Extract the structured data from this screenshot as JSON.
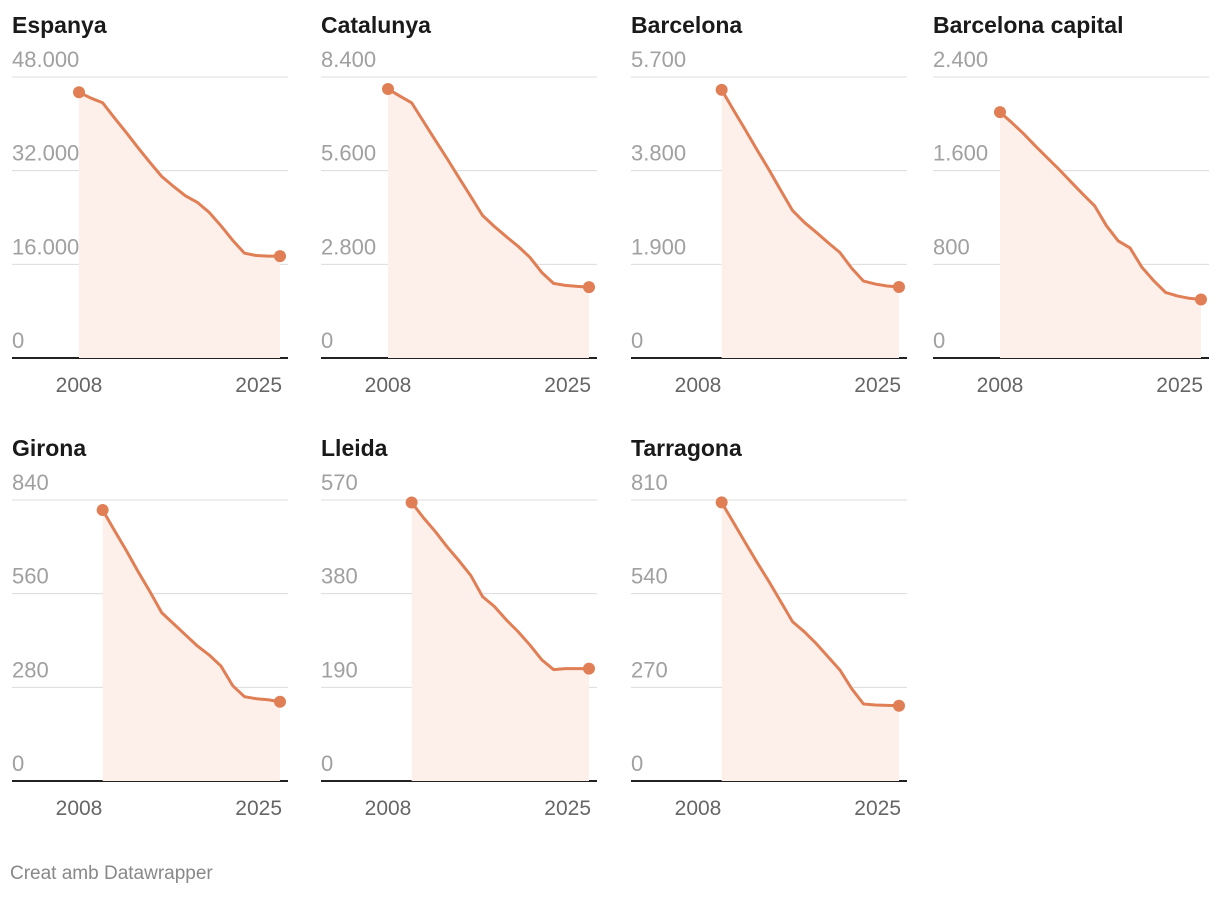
{
  "chart_data": [
    {
      "type": "area",
      "title": "Espanya",
      "color": "#e07f55",
      "fill": "#fdf0eb",
      "x": [
        2008,
        2009,
        2010,
        2011,
        2012,
        2013,
        2014,
        2015,
        2016,
        2017,
        2018,
        2019,
        2020,
        2021,
        2022,
        2023,
        2024,
        2025
      ],
      "values": [
        45400,
        44400,
        43600,
        41000,
        38500,
        35900,
        33400,
        31000,
        29300,
        27700,
        26600,
        24900,
        22600,
        20100,
        17900,
        17500,
        17400,
        17400
      ],
      "xlim": [
        2008,
        2025
      ],
      "xticks": [
        2008,
        2025
      ],
      "ylim": [
        0,
        48000
      ],
      "yticks": [
        0,
        {
          "value": 16000,
          "label": "16.000"
        },
        {
          "value": 32000,
          "label": "32.000"
        },
        {
          "value": 48000,
          "label": "48.000"
        }
      ]
    },
    {
      "type": "area",
      "title": "Catalunya",
      "color": "#e07f55",
      "fill": "#fdf0eb",
      "x": [
        2008,
        2009,
        2010,
        2011,
        2012,
        2013,
        2014,
        2015,
        2016,
        2017,
        2018,
        2019,
        2020,
        2021,
        2022,
        2023,
        2024,
        2025
      ],
      "values": [
        8040,
        7830,
        7630,
        7070,
        6510,
        5960,
        5390,
        4830,
        4260,
        3930,
        3630,
        3340,
        3010,
        2560,
        2230,
        2170,
        2140,
        2120
      ],
      "xlim": [
        2008,
        2025
      ],
      "xticks": [
        2008,
        2025
      ],
      "ylim": [
        0,
        8400
      ],
      "yticks": [
        0,
        {
          "value": 2800,
          "label": "2.800"
        },
        {
          "value": 5600,
          "label": "5.600"
        },
        {
          "value": 8400,
          "label": "8.400"
        }
      ]
    },
    {
      "type": "area",
      "title": "Barcelona",
      "color": "#e07f55",
      "fill": "#fdf0eb",
      "x": [
        2010,
        2011,
        2012,
        2013,
        2014,
        2015,
        2016,
        2017,
        2018,
        2019,
        2020,
        2021,
        2022,
        2023,
        2024,
        2025
      ],
      "values": [
        5440,
        5030,
        4630,
        4220,
        3820,
        3400,
        2990,
        2750,
        2550,
        2340,
        2140,
        1820,
        1560,
        1500,
        1460,
        1440
      ],
      "xlim": [
        2008,
        2025
      ],
      "xticks": [
        2008,
        2025
      ],
      "ylim": [
        0,
        5700
      ],
      "yticks": [
        0,
        {
          "value": 1900,
          "label": "1.900"
        },
        {
          "value": 3800,
          "label": "3.800"
        },
        {
          "value": 5700,
          "label": "5.700"
        }
      ]
    },
    {
      "type": "area",
      "title": "Barcelona capital",
      "color": "#e07f55",
      "fill": "#fdf0eb",
      "x": [
        2008,
        2009,
        2010,
        2011,
        2012,
        2013,
        2014,
        2015,
        2016,
        2017,
        2018,
        2019,
        2020,
        2021,
        2022,
        2023,
        2024,
        2025
      ],
      "values": [
        2100,
        2010,
        1915,
        1810,
        1710,
        1610,
        1505,
        1400,
        1300,
        1130,
        1000,
        940,
        775,
        660,
        560,
        530,
        510,
        500
      ],
      "xlim": [
        2008,
        2025
      ],
      "xticks": [
        2008,
        2025
      ],
      "ylim": [
        0,
        2400
      ],
      "yticks": [
        0,
        800,
        {
          "value": 1600,
          "label": "1.600"
        },
        {
          "value": 2400,
          "label": "2.400"
        }
      ]
    },
    {
      "type": "area",
      "title": "Girona",
      "color": "#e07f55",
      "fill": "#fdf0eb",
      "x": [
        2010,
        2011,
        2012,
        2013,
        2014,
        2015,
        2016,
        2017,
        2018,
        2019,
        2020,
        2021,
        2022,
        2023,
        2024,
        2025
      ],
      "values": [
        810,
        749,
        689,
        626,
        566,
        503,
        470,
        437,
        404,
        377,
        344,
        285,
        252,
        246,
        243,
        237
      ],
      "xlim": [
        2008,
        2025
      ],
      "xticks": [
        2008,
        2025
      ],
      "ylim": [
        0,
        840
      ],
      "yticks": [
        0,
        280,
        560,
        840
      ]
    },
    {
      "type": "area",
      "title": "Lleida",
      "color": "#e07f55",
      "fill": "#fdf0eb",
      "x": [
        2010,
        2011,
        2012,
        2013,
        2014,
        2015,
        2016,
        2017,
        2018,
        2019,
        2020,
        2021,
        2022,
        2023,
        2024,
        2025
      ],
      "values": [
        565,
        534,
        506,
        475,
        447,
        417,
        374,
        354,
        327,
        303,
        276,
        246,
        226,
        228,
        228,
        228
      ],
      "xlim": [
        2008,
        2025
      ],
      "xticks": [
        2008,
        2025
      ],
      "ylim": [
        0,
        570
      ],
      "yticks": [
        0,
        190,
        380,
        570
      ]
    },
    {
      "type": "area",
      "title": "Tarragona",
      "color": "#e07f55",
      "fill": "#fdf0eb",
      "x": [
        2010,
        2011,
        2012,
        2013,
        2014,
        2015,
        2016,
        2017,
        2018,
        2019,
        2020,
        2021,
        2022,
        2023,
        2024,
        2025
      ],
      "values": [
        803,
        745,
        687,
        630,
        575,
        517,
        459,
        430,
        396,
        358,
        320,
        266,
        222,
        219,
        218,
        217
      ],
      "xlim": [
        2008,
        2025
      ],
      "xticks": [
        2008,
        2025
      ],
      "ylim": [
        0,
        810
      ],
      "yticks": [
        0,
        270,
        540,
        810
      ]
    }
  ],
  "footer": "Creat amb Datawrapper"
}
